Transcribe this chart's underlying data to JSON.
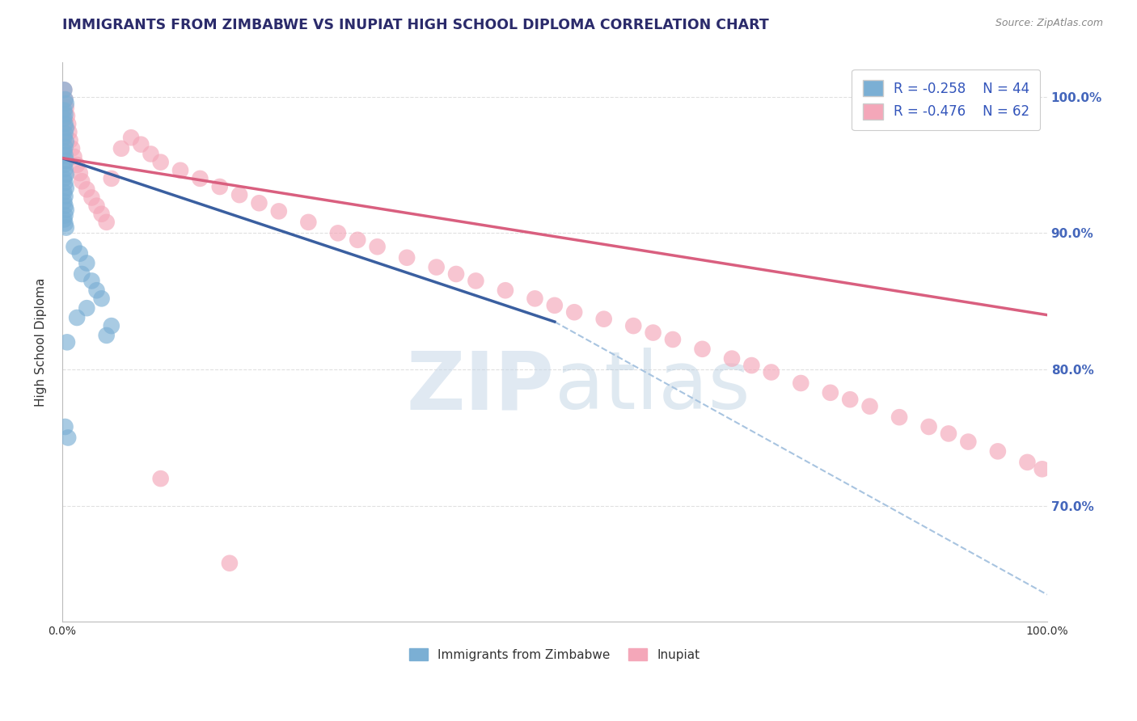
{
  "title": "IMMIGRANTS FROM ZIMBABWE VS INUPIAT HIGH SCHOOL DIPLOMA CORRELATION CHART",
  "source_text": "Source: ZipAtlas.com",
  "ylabel": "High School Diploma",
  "y_tick_labels": [
    "70.0%",
    "80.0%",
    "90.0%",
    "100.0%"
  ],
  "y_tick_values": [
    0.7,
    0.8,
    0.9,
    1.0
  ],
  "x_lim": [
    0.0,
    1.0
  ],
  "y_lim": [
    0.615,
    1.025
  ],
  "legend_r1": "R = -0.258",
  "legend_n1": "N = 44",
  "legend_r2": "R = -0.476",
  "legend_n2": "N = 62",
  "color_blue": "#7BAFD4",
  "color_pink": "#F4A7B9",
  "color_blue_line": "#3A5FA0",
  "color_pink_line": "#D95F7F",
  "color_dashed": "#A8C4E0",
  "watermark_zip": "ZIP",
  "watermark_atlas": "atlas",
  "background_color": "#FFFFFF",
  "grid_color": "#E0E0E0",
  "blue_x": [
    0.002,
    0.003,
    0.004,
    0.002,
    0.003,
    0.002,
    0.003,
    0.004,
    0.003,
    0.002,
    0.004,
    0.003,
    0.002,
    0.003,
    0.004,
    0.002,
    0.003,
    0.004,
    0.002,
    0.003,
    0.004,
    0.002,
    0.003,
    0.002,
    0.003,
    0.004,
    0.003,
    0.002,
    0.003,
    0.004,
    0.012,
    0.018,
    0.025,
    0.02,
    0.03,
    0.035,
    0.04,
    0.025,
    0.015,
    0.05,
    0.045,
    0.005,
    0.003,
    0.006
  ],
  "blue_y": [
    1.005,
    0.998,
    0.995,
    0.99,
    0.987,
    0.984,
    0.98,
    0.977,
    0.973,
    0.97,
    0.967,
    0.963,
    0.96,
    0.957,
    0.953,
    0.95,
    0.947,
    0.943,
    0.94,
    0.937,
    0.933,
    0.93,
    0.927,
    0.923,
    0.92,
    0.917,
    0.913,
    0.91,
    0.907,
    0.904,
    0.89,
    0.885,
    0.878,
    0.87,
    0.865,
    0.858,
    0.852,
    0.845,
    0.838,
    0.832,
    0.825,
    0.82,
    0.758,
    0.75
  ],
  "pink_x": [
    0.002,
    0.003,
    0.004,
    0.005,
    0.006,
    0.007,
    0.008,
    0.01,
    0.012,
    0.015,
    0.018,
    0.02,
    0.025,
    0.03,
    0.035,
    0.04,
    0.045,
    0.05,
    0.06,
    0.07,
    0.08,
    0.09,
    0.1,
    0.12,
    0.14,
    0.16,
    0.18,
    0.2,
    0.22,
    0.25,
    0.28,
    0.3,
    0.32,
    0.35,
    0.38,
    0.4,
    0.42,
    0.45,
    0.48,
    0.5,
    0.52,
    0.55,
    0.58,
    0.6,
    0.62,
    0.65,
    0.68,
    0.7,
    0.72,
    0.75,
    0.78,
    0.8,
    0.82,
    0.85,
    0.88,
    0.9,
    0.92,
    0.95,
    0.98,
    0.995,
    0.1,
    0.17
  ],
  "pink_y": [
    1.005,
    0.998,
    0.992,
    0.986,
    0.98,
    0.974,
    0.968,
    0.962,
    0.956,
    0.95,
    0.944,
    0.938,
    0.932,
    0.926,
    0.92,
    0.914,
    0.908,
    0.94,
    0.962,
    0.97,
    0.965,
    0.958,
    0.952,
    0.946,
    0.94,
    0.934,
    0.928,
    0.922,
    0.916,
    0.908,
    0.9,
    0.895,
    0.89,
    0.882,
    0.875,
    0.87,
    0.865,
    0.858,
    0.852,
    0.847,
    0.842,
    0.837,
    0.832,
    0.827,
    0.822,
    0.815,
    0.808,
    0.803,
    0.798,
    0.79,
    0.783,
    0.778,
    0.773,
    0.765,
    0.758,
    0.753,
    0.747,
    0.74,
    0.732,
    0.727,
    0.72,
    0.658
  ],
  "blue_line_x": [
    0.0,
    0.5
  ],
  "blue_line_y": [
    0.955,
    0.835
  ],
  "pink_line_x": [
    0.0,
    1.0
  ],
  "pink_line_y": [
    0.955,
    0.84
  ],
  "dashed_line_x": [
    0.5,
    1.0
  ],
  "dashed_line_y": [
    0.835,
    0.635
  ]
}
